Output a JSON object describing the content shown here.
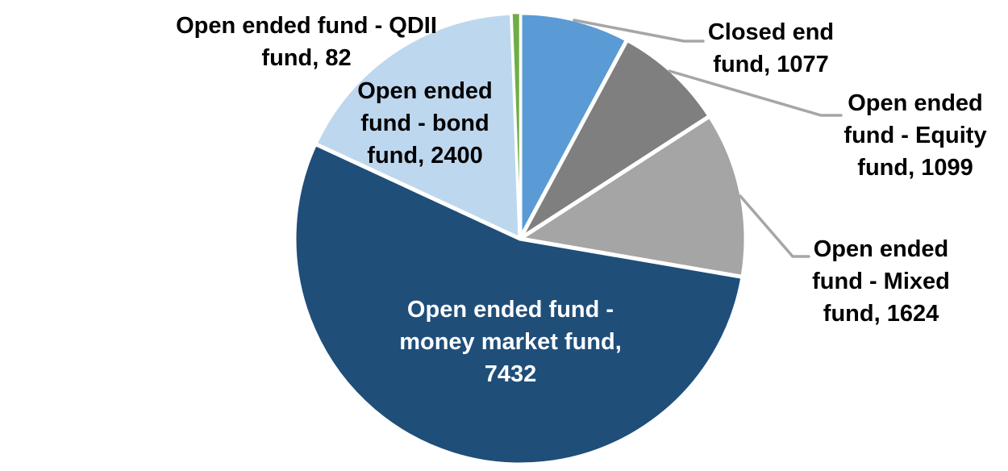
{
  "chart": {
    "background": "#FFFFFF",
    "leader_line_color": "#A6A6A6",
    "slice_border_color": "#FFFFFF",
    "label_text_color": "#000000",
    "inside_label_text_color": "#FFFFFF"
  },
  "chart_data": {
    "type": "pie",
    "title": "",
    "legend_position": "none",
    "start_angle_deg": 0,
    "direction": "clockwise",
    "data_label_format": "category name, value",
    "total": 13714,
    "slices": [
      {
        "label": "Closed end fund",
        "value": 1077,
        "color": "#5B9BD5"
      },
      {
        "label": "Open ended fund - Equity fund",
        "value": 1099,
        "color": "#7F7F7F"
      },
      {
        "label": "Open ended fund - Mixed fund",
        "value": 1624,
        "color": "#A5A5A5"
      },
      {
        "label": "Open ended fund - money market fund",
        "value": 7432,
        "color": "#1F4E79"
      },
      {
        "label": "Open ended fund - bond fund",
        "value": 2400,
        "color": "#BDD7EE"
      },
      {
        "label": "Open ended fund - QDII fund",
        "value": 82,
        "color": "#70AD47"
      }
    ]
  },
  "callouts": {
    "closed_end": {
      "lines": [
        "Closed end",
        "fund, 1077"
      ]
    },
    "equity": {
      "lines": [
        "Open ended",
        "fund - Equity",
        "fund, 1099"
      ]
    },
    "mixed": {
      "lines": [
        "Open ended",
        "fund - Mixed",
        "fund, 1624"
      ]
    },
    "money_market": {
      "lines": [
        "Open ended fund -",
        "money market fund,",
        "7432"
      ]
    },
    "bond": {
      "lines": [
        "Open ended",
        "fund - bond",
        "fund, 2400"
      ]
    },
    "qdii": {
      "lines": [
        "Open ended fund - QDII",
        "fund, 82"
      ]
    }
  }
}
